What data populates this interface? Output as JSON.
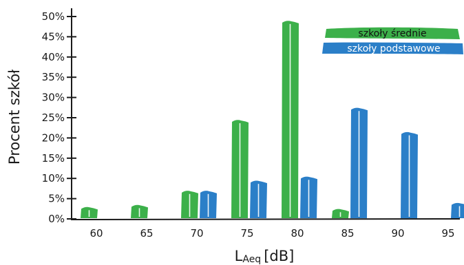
{
  "chart_data": {
    "type": "bar",
    "categories": [
      "60",
      "65",
      "70",
      "75",
      "80",
      "85",
      "90",
      "95"
    ],
    "series": [
      {
        "name": "szkoły średnie",
        "color": "#3cb04a",
        "values": [
          3,
          3.5,
          7,
          24.5,
          49,
          2.5,
          0,
          0
        ]
      },
      {
        "name": "szkoły podstawowe",
        "color": "#2b7fc8",
        "values": [
          0,
          0,
          7,
          9.5,
          10.5,
          27.5,
          21.5,
          4
        ]
      }
    ],
    "ylabel": "Procent szkół",
    "xlabel_main": "L",
    "xlabel_sub": "Aeq",
    "xlabel_unit": "[dB]",
    "ylim": [
      0,
      50
    ],
    "ytick_values": [
      0,
      5,
      10,
      15,
      20,
      25,
      30,
      35,
      40,
      45,
      50
    ],
    "ytick_labels": [
      "0%",
      "5%",
      "10%",
      "15%",
      "20%",
      "25%",
      "30%",
      "35%",
      "40%",
      "45%",
      "50%"
    ],
    "grid": false,
    "legend_position": "top-right"
  }
}
